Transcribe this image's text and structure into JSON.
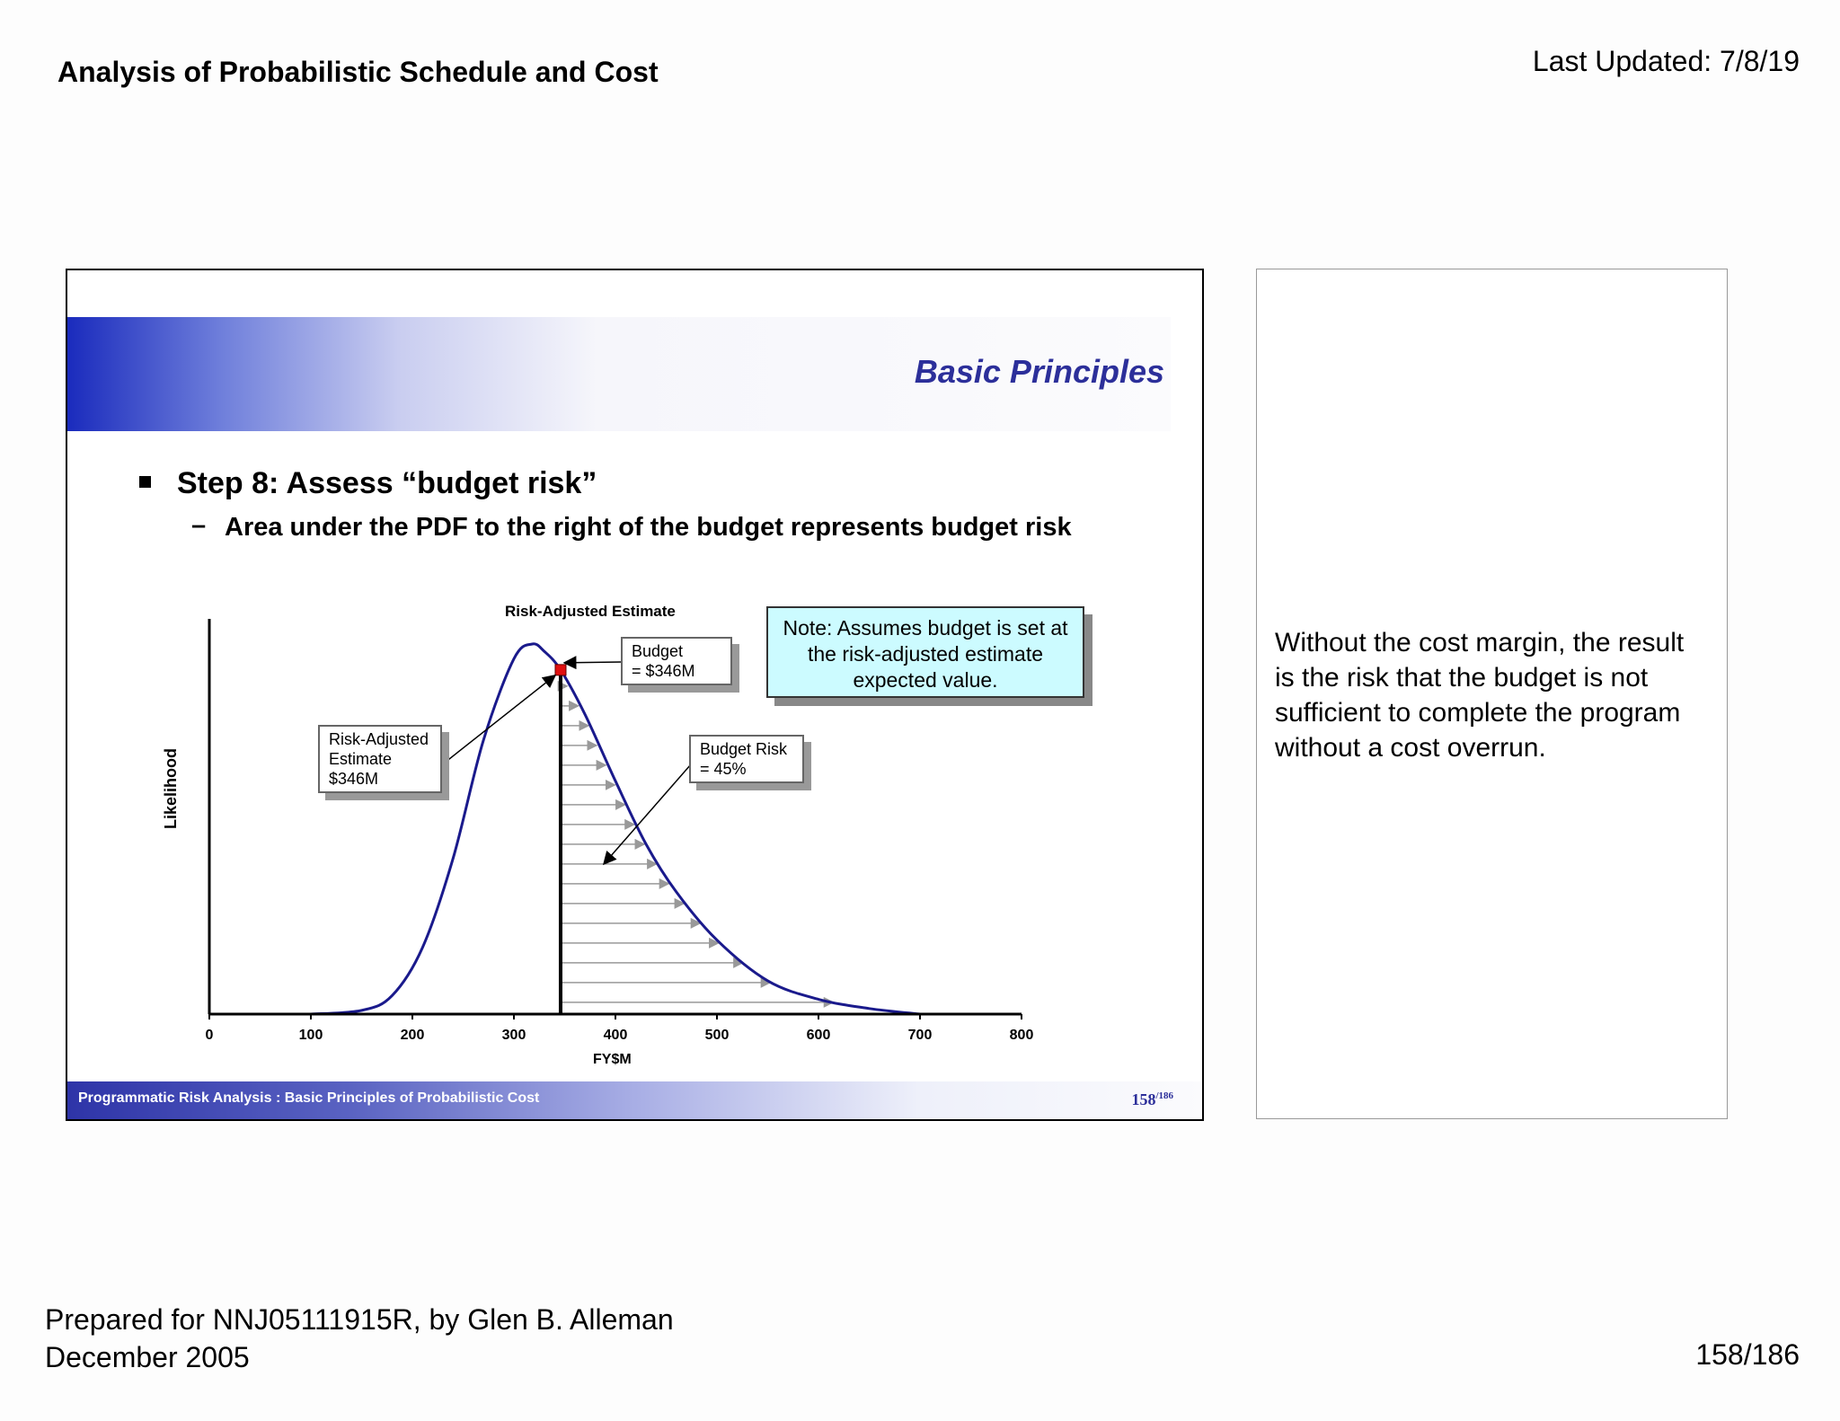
{
  "header": {
    "title": "Analysis of Probabilistic Schedule and Cost",
    "last_updated": "Last Updated: 7/8/19"
  },
  "slide": {
    "heading": "Basic Principles",
    "step": "Step 8: Assess “budget risk”",
    "dash": "–",
    "sub": "Area under the PDF to the right of the budget represents budget risk",
    "chart_title": "Risk-Adjusted Estimate",
    "note": "Note: Assumes budget is set at the risk-adjusted estimate expected value.",
    "callout_budget": [
      "Budget",
      "= $346M"
    ],
    "callout_estimate": [
      "Risk-Adjusted",
      "Estimate",
      "$346M"
    ],
    "callout_risk": [
      "Budget Risk",
      "= 45%"
    ],
    "footer": "Programmatic Risk Analysis  : Basic Principles of Probabilistic Cost",
    "page": "158",
    "page_total": "/186"
  },
  "chart_data": {
    "type": "area",
    "title": "Risk-Adjusted Estimate",
    "xlabel": "FY$M",
    "ylabel": "Likelihood",
    "xlim": [
      0,
      800
    ],
    "xticks": [
      "0",
      "100",
      "200",
      "300",
      "400",
      "500",
      "600",
      "700",
      "800"
    ],
    "budget": 346,
    "mode": 318,
    "budget_risk_pct": 45,
    "curve": {
      "x": [
        100,
        150,
        180,
        210,
        240,
        270,
        300,
        318,
        330,
        346,
        370,
        400,
        430,
        460,
        500,
        550,
        600,
        650,
        700
      ],
      "y": [
        0.0,
        0.01,
        0.05,
        0.18,
        0.42,
        0.74,
        0.96,
        1.0,
        0.98,
        0.93,
        0.81,
        0.63,
        0.46,
        0.33,
        0.2,
        0.09,
        0.04,
        0.015,
        0.0
      ]
    },
    "colors": {
      "curve": "#1a1a8c",
      "marker": "#e01010",
      "arrows": "#999999"
    }
  },
  "notes": {
    "text": "Without the cost margin, the result is the risk that the budget is not sufficient to complete the program without a cost overrun."
  },
  "footer": {
    "prepared_line1": "Prepared for NNJ05111915R, by Glen B. Alleman",
    "prepared_line2": "December 2005",
    "page": "158/186"
  }
}
